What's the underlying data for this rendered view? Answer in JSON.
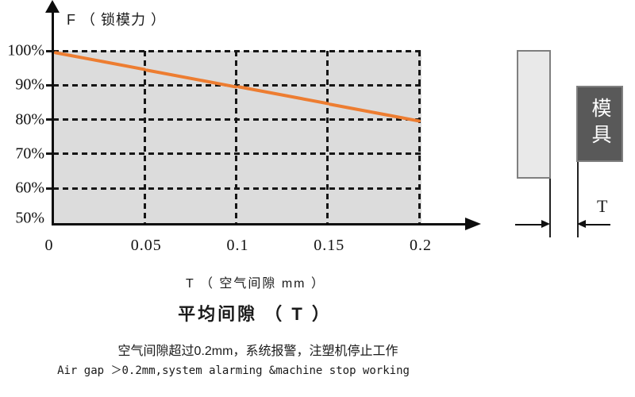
{
  "colors": {
    "line": "#ED7D31",
    "plot_bg": "#DCDCDC",
    "grid": "#161616",
    "platen_fill": "#E9E9E9",
    "platen_border": "#7F7F7F",
    "mold_fill": "#595959",
    "mold_border": "#808080"
  },
  "chart": {
    "f_axis_label": "F （ 锁模力 ）",
    "x_axis_label": "T （ 空气间隙 mm ）",
    "title": "平均间隙 （ T ）",
    "y_tick_labels": [
      "100%",
      "90%",
      "80%",
      "70%",
      "60%",
      "50%"
    ],
    "x_tick_labels": [
      "0",
      "0.05",
      "0.1",
      "0.15",
      "0.2"
    ]
  },
  "chart_data": {
    "type": "line",
    "title": "平均间隙 （ T ）",
    "xlabel": "T （ 空气间隙 mm ）",
    "ylabel": "F （ 锁模力 ）",
    "x": [
      0,
      0.05,
      0.1,
      0.15,
      0.2
    ],
    "series": [
      {
        "name": "F（锁模力）%",
        "values": [
          100,
          95,
          90,
          85,
          80
        ]
      }
    ],
    "xlim": [
      0,
      0.2
    ],
    "ylim": [
      50,
      100
    ],
    "y_ticks_percent": [
      50,
      60,
      70,
      80,
      90,
      100
    ],
    "grid": "dashed",
    "legend": "none",
    "line_color": "#ED7D31",
    "plot_background": "#DCDCDC"
  },
  "notes": {
    "cn": "空气间隙超过0.2mm，系统报警，注塑机停止工作",
    "en": "Air gap ＞0.2mm,system alarming &machine stop working"
  },
  "diagram": {
    "mold_label": "模具",
    "gap_label": "T"
  }
}
